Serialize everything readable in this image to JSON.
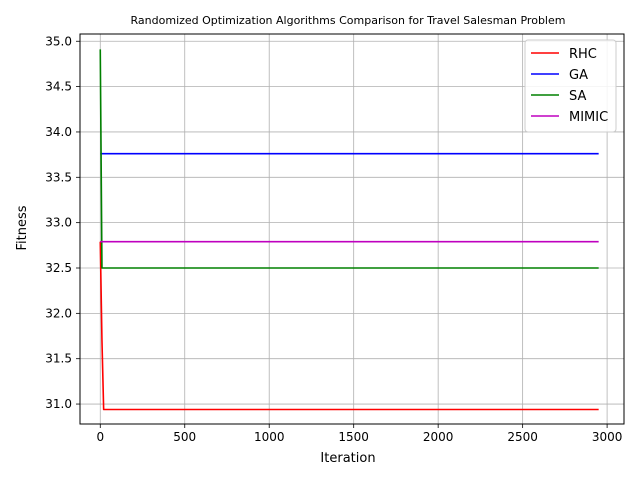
{
  "chart_data": {
    "type": "line",
    "title": "Randomized Optimization Algorithms Comparison for Travel Salesman Problem",
    "xlabel": "Iteration",
    "ylabel": "Fitness",
    "xlim": [
      -120,
      3100
    ],
    "ylim": [
      30.78,
      35.08
    ],
    "x_ticks": [
      0,
      500,
      1000,
      1500,
      2000,
      2500,
      3000
    ],
    "y_ticks": [
      31.0,
      31.5,
      32.0,
      32.5,
      33.0,
      33.5,
      34.0,
      34.5,
      35.0
    ],
    "grid": true,
    "legend_position": "top-right",
    "series": [
      {
        "name": "RHC",
        "color": "#ff0000",
        "points": [
          [
            0,
            32.79
          ],
          [
            10,
            31.7
          ],
          [
            20,
            30.94
          ],
          [
            2950,
            30.94
          ]
        ]
      },
      {
        "name": "GA",
        "color": "#0000ff",
        "points": [
          [
            0,
            33.76
          ],
          [
            2950,
            33.76
          ]
        ]
      },
      {
        "name": "SA",
        "color": "#008000",
        "points": [
          [
            0,
            34.91
          ],
          [
            10,
            32.5
          ],
          [
            2950,
            32.5
          ]
        ]
      },
      {
        "name": "MIMIC",
        "color": "#bf00bf",
        "points": [
          [
            0,
            32.79
          ],
          [
            2950,
            32.79
          ]
        ]
      }
    ]
  }
}
